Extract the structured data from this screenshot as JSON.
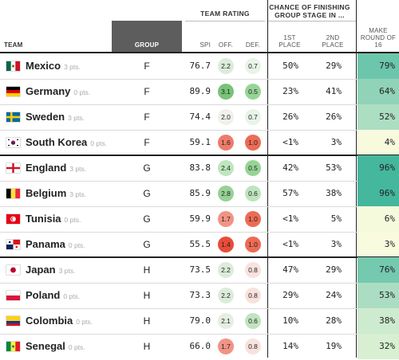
{
  "header": {
    "team_rating": "TEAM RATING",
    "chance": "CHANCE OF FINISHING GROUP STAGE IN ...",
    "team": "TEAM",
    "group": "GROUP",
    "spi": "SPI",
    "off": "OFF.",
    "def": "DEF.",
    "first": "1ST PLACE",
    "second": "2ND PLACE",
    "make": "MAKE ROUND OF 16"
  },
  "colors": {
    "group_header_bg": "#5d5d5d",
    "off_good": "#79c879",
    "off_bad": "#e8513d",
    "def_good": "#7fcc7f",
    "def_bad": "#e8513d",
    "make_high": "#3fb89b",
    "make_low": "#fbf9d4"
  },
  "chart_data": {
    "type": "table",
    "columns": [
      "TEAM",
      "GROUP",
      "SPI",
      "OFF.",
      "DEF.",
      "1ST PLACE",
      "2ND PLACE",
      "MAKE ROUND OF 16"
    ],
    "rows": [
      {
        "team": "Mexico",
        "pts": "3 pts.",
        "flag": "mexico",
        "group": "F",
        "spi": "76.7",
        "off": "2.2",
        "def": "0.7",
        "first": "50%",
        "second": "29%",
        "make": "79%",
        "off_v": 2.2,
        "def_v": 0.7,
        "make_v": 79
      },
      {
        "team": "Germany",
        "pts": "0 pts.",
        "flag": "germany",
        "group": "F",
        "spi": "89.9",
        "off": "3.1",
        "def": "0.5",
        "first": "23%",
        "second": "41%",
        "make": "64%",
        "off_v": 3.1,
        "def_v": 0.5,
        "make_v": 64
      },
      {
        "team": "Sweden",
        "pts": "3 pts.",
        "flag": "sweden",
        "group": "F",
        "spi": "74.4",
        "off": "2.0",
        "def": "0.7",
        "first": "26%",
        "second": "26%",
        "make": "52%",
        "off_v": 2.0,
        "def_v": 0.7,
        "make_v": 52
      },
      {
        "team": "South Korea",
        "pts": "0 pts.",
        "flag": "south-korea",
        "group": "F",
        "spi": "59.1",
        "off": "1.6",
        "def": "1.0",
        "first": "<1%",
        "second": "3%",
        "make": "4%",
        "off_v": 1.6,
        "def_v": 1.0,
        "make_v": 4
      },
      {
        "team": "England",
        "pts": "3 pts.",
        "flag": "england",
        "group": "G",
        "spi": "83.8",
        "off": "2.4",
        "def": "0.5",
        "first": "42%",
        "second": "53%",
        "make": "96%",
        "off_v": 2.4,
        "def_v": 0.5,
        "make_v": 96
      },
      {
        "team": "Belgium",
        "pts": "3 pts.",
        "flag": "belgium",
        "group": "G",
        "spi": "85.9",
        "off": "2.8",
        "def": "0.6",
        "first": "57%",
        "second": "38%",
        "make": "96%",
        "off_v": 2.8,
        "def_v": 0.6,
        "make_v": 96
      },
      {
        "team": "Tunisia",
        "pts": "0 pts.",
        "flag": "tunisia",
        "group": "G",
        "spi": "59.9",
        "off": "1.7",
        "def": "1.0",
        "first": "<1%",
        "second": "5%",
        "make": "6%",
        "off_v": 1.7,
        "def_v": 1.0,
        "make_v": 6
      },
      {
        "team": "Panama",
        "pts": "0 pts.",
        "flag": "panama",
        "group": "G",
        "spi": "55.5",
        "off": "1.4",
        "def": "1.0",
        "first": "<1%",
        "second": "3%",
        "make": "3%",
        "off_v": 1.4,
        "def_v": 1.0,
        "make_v": 3
      },
      {
        "team": "Japan",
        "pts": "3 pts.",
        "flag": "japan",
        "group": "H",
        "spi": "73.5",
        "off": "2.2",
        "def": "0.8",
        "first": "47%",
        "second": "29%",
        "make": "76%",
        "off_v": 2.2,
        "def_v": 0.8,
        "make_v": 76
      },
      {
        "team": "Poland",
        "pts": "0 pts.",
        "flag": "poland",
        "group": "H",
        "spi": "73.3",
        "off": "2.2",
        "def": "0.8",
        "first": "29%",
        "second": "24%",
        "make": "53%",
        "off_v": 2.2,
        "def_v": 0.8,
        "make_v": 53
      },
      {
        "team": "Colombia",
        "pts": "0 pts.",
        "flag": "colombia",
        "group": "H",
        "spi": "79.0",
        "off": "2.1",
        "def": "0.6",
        "first": "10%",
        "second": "28%",
        "make": "38%",
        "off_v": 2.1,
        "def_v": 0.6,
        "make_v": 38
      },
      {
        "team": "Senegal",
        "pts": "0 pts.",
        "flag": "senegal",
        "group": "H",
        "spi": "66.0",
        "off": "1.7",
        "def": "0.8",
        "first": "14%",
        "second": "19%",
        "make": "32%",
        "off_v": 1.7,
        "def_v": 0.8,
        "make_v": 32
      }
    ]
  }
}
